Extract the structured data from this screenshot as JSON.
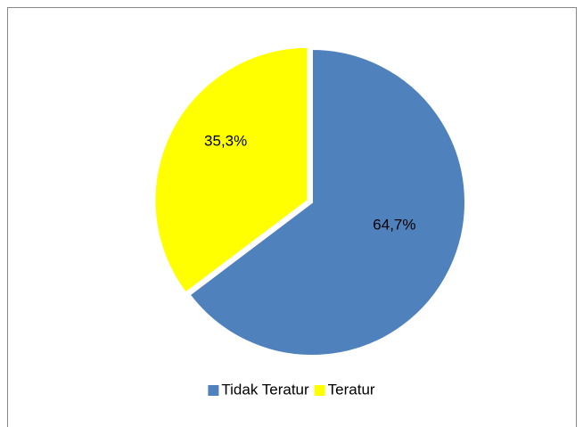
{
  "chart_data": {
    "type": "pie",
    "categories": [
      "Tidak Teratur",
      "Teratur"
    ],
    "values": [
      64.7,
      35.3
    ],
    "value_labels": [
      "64,7%",
      "35,3%"
    ],
    "colors": [
      "#4f81bd",
      "#ffff00"
    ],
    "legend": "bottom"
  }
}
